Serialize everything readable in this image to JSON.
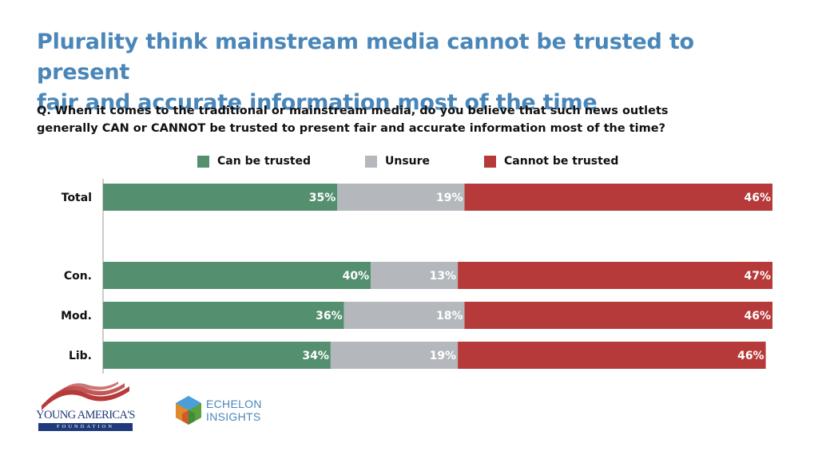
{
  "title_lines": [
    "Plurality think mainstream media cannot be trusted to present",
    "fair and accurate information most of the time"
  ],
  "question_lines": [
    "Q. When it comes to the traditional or mainstream media, do you believe that such news outlets",
    "generally CAN or CANNOT be trusted to present fair and accurate information most of the time?"
  ],
  "colors": {
    "trusted": "#54906f",
    "unsure": "#b4b8bd",
    "cannot": "#b73a3a",
    "title": "#4a86b8"
  },
  "logos": {
    "yaf": {
      "main": "YOUNG AMERICA'S",
      "sub": "FOUNDATION"
    },
    "echelon": {
      "line1": "ECHELON",
      "line2": "INSIGHTS"
    }
  },
  "chart_data": {
    "type": "bar",
    "orientation": "horizontal",
    "stacked": true,
    "categories": [
      "Total",
      "Con.",
      "Mod.",
      "Lib."
    ],
    "series": [
      {
        "name": "Can be trusted",
        "values": [
          35,
          40,
          36,
          34
        ]
      },
      {
        "name": "Unsure",
        "values": [
          19,
          13,
          18,
          19
        ]
      },
      {
        "name": "Cannot be trusted",
        "values": [
          46,
          47,
          46,
          46
        ]
      }
    ],
    "value_suffix": "%",
    "xlim": [
      0,
      100
    ],
    "legend": "top",
    "grid": false
  }
}
